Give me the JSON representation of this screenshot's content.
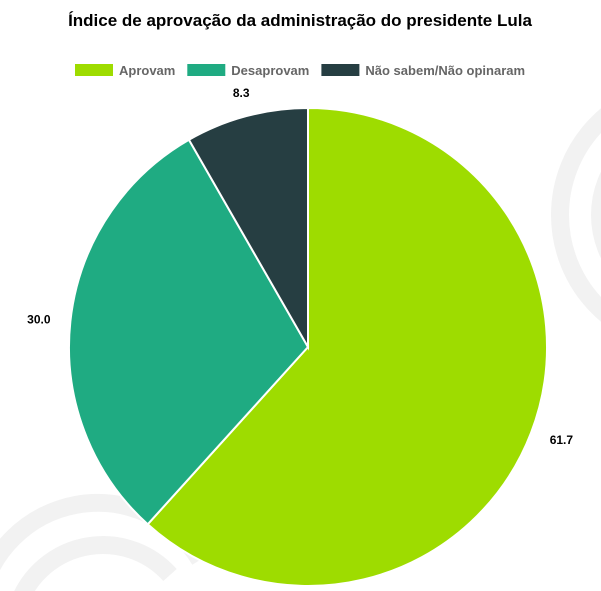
{
  "chart_data": {
    "type": "pie",
    "title": "Índice de aprovação da administração do presidente Lula",
    "categories": [
      "Aprovam",
      "Desaprovam",
      "Não sabem/Não opinaram"
    ],
    "values": [
      61.7,
      30.0,
      8.3
    ],
    "value_labels": [
      "61.7",
      "30.0",
      "8.3"
    ],
    "colors": [
      "#9EDC00",
      "#1FAB82",
      "#263E42"
    ],
    "legend_position": "top"
  }
}
